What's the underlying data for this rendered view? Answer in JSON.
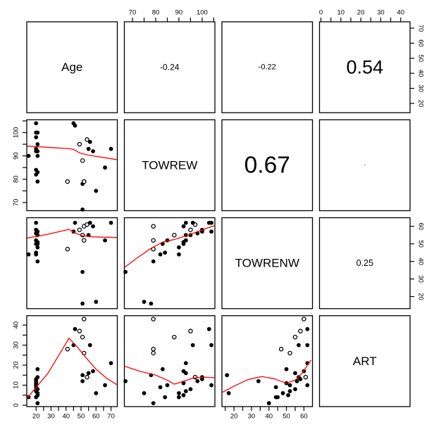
{
  "figure": {
    "kind": "R pairs scatterplot matrix",
    "background": "#ffffff"
  },
  "chart_data": {
    "type": "scatter",
    "subtype": "scatterplot-matrix",
    "variables": [
      {
        "name": "Age",
        "range": [
          13.8,
          74.2
        ],
        "major_ticks": [
          20,
          30,
          40,
          50,
          60,
          70
        ],
        "minor_ticks": [
          25,
          35,
          45,
          55,
          65
        ]
      },
      {
        "name": "TOWREW",
        "range": [
          66.5,
          105.5
        ],
        "major_ticks": [
          70,
          80,
          90,
          100
        ],
        "minor_ticks": [
          75,
          85,
          95,
          105
        ]
      },
      {
        "name": "TOWRENW",
        "range": [
          13.1,
          64.9
        ],
        "major_ticks": [
          20,
          30,
          40,
          50,
          60
        ],
        "minor_ticks": [
          15,
          25,
          35,
          45,
          55
        ]
      },
      {
        "name": "ART",
        "range": [
          -0.7,
          44.7
        ],
        "major_ticks": [
          0,
          10,
          20,
          30,
          40
        ],
        "minor_ticks": [
          5,
          15,
          25,
          35
        ]
      }
    ],
    "correlations": [
      {
        "row": 0,
        "col": 1,
        "r": -0.24,
        "label": "-0.24"
      },
      {
        "row": 0,
        "col": 2,
        "r": -0.22,
        "label": "-0.22"
      },
      {
        "row": 0,
        "col": 3,
        "r": 0.54,
        "label": "0.54"
      },
      {
        "row": 1,
        "col": 2,
        "r": 0.67,
        "label": "0.67"
      },
      {
        "row": 1,
        "col": 3,
        "r": null,
        "label": "-"
      },
      {
        "row": 2,
        "col": 3,
        "r": 0.25,
        "label": "0.25"
      }
    ],
    "observations": [
      {
        "values": [
          15,
          90,
          44,
          4
        ],
        "marker": "f"
      },
      {
        "values": [
          20,
          104,
          62,
          10
        ],
        "marker": "f"
      },
      {
        "values": [
          20,
          100,
          58,
          13
        ],
        "marker": "f"
      },
      {
        "values": [
          21,
          100,
          57,
          14
        ],
        "marker": "f"
      },
      {
        "values": [
          20,
          98,
          56,
          12
        ],
        "marker": "f"
      },
      {
        "values": [
          21,
          95,
          55,
          8
        ],
        "marker": "f"
      },
      {
        "values": [
          20,
          93,
          52,
          7
        ],
        "marker": "f"
      },
      {
        "values": [
          21,
          92,
          51,
          5
        ],
        "marker": "f"
      },
      {
        "values": [
          20,
          92,
          50,
          11
        ],
        "marker": "f"
      },
      {
        "values": [
          21,
          90,
          48,
          6
        ],
        "marker": "f"
      },
      {
        "values": [
          20,
          84,
          45,
          4
        ],
        "marker": "f"
      },
      {
        "values": [
          21,
          83,
          50,
          18
        ],
        "marker": "f"
      },
      {
        "values": [
          20,
          82,
          44,
          9
        ],
        "marker": "f"
      },
      {
        "values": [
          21,
          79,
          40,
          1
        ],
        "marker": "f"
      },
      {
        "values": [
          45,
          104,
          57,
          30
        ],
        "marker": "f"
      },
      {
        "values": [
          46,
          103,
          62,
          38
        ],
        "marker": "f"
      },
      {
        "values": [
          41,
          79,
          47,
          28
        ],
        "marker": "o"
      },
      {
        "values": [
          49,
          95,
          58,
          37
        ],
        "marker": "o"
      },
      {
        "values": [
          51,
          88,
          55,
          34
        ],
        "marker": "o"
      },
      {
        "values": [
          52,
          79,
          52,
          26
        ],
        "marker": "o"
      },
      {
        "values": [
          51,
          78,
          16,
          15
        ],
        "marker": "f"
      },
      {
        "values": [
          52,
          79,
          60,
          43
        ],
        "marker": "o"
      },
      {
        "values": [
          51,
          67,
          34,
          12
        ],
        "marker": "f"
      },
      {
        "values": [
          55,
          93,
          55,
          16
        ],
        "marker": "f"
      },
      {
        "values": [
          54,
          97,
          61,
          14
        ],
        "marker": "o"
      },
      {
        "values": [
          56,
          96,
          62,
          30
        ],
        "marker": "f"
      },
      {
        "values": [
          58,
          92,
          60,
          17
        ],
        "marker": "f"
      },
      {
        "values": [
          60,
          75,
          17,
          6
        ],
        "marker": "f"
      },
      {
        "values": [
          66,
          85,
          52,
          10
        ],
        "marker": "f"
      },
      {
        "values": [
          70,
          93,
          62,
          21
        ],
        "marker": "f"
      }
    ],
    "smooth_lines": {
      "r1c0": [
        [
          14,
          94.2
        ],
        [
          30,
          93.6
        ],
        [
          42,
          93.1
        ],
        [
          45,
          92.8
        ],
        [
          49,
          91.3
        ],
        [
          53,
          90.6
        ],
        [
          58,
          90.0
        ],
        [
          65,
          89.3
        ],
        [
          74,
          88.4
        ]
      ],
      "r2c0": [
        [
          14,
          53.3
        ],
        [
          28,
          55.5
        ],
        [
          42,
          58.3
        ],
        [
          46,
          56.2
        ],
        [
          51,
          54.6
        ],
        [
          58,
          54.0
        ],
        [
          66,
          53.8
        ],
        [
          74,
          53.6
        ]
      ],
      "r3c0": [
        [
          14,
          3.5
        ],
        [
          28,
          16.0
        ],
        [
          42,
          33.5
        ],
        [
          47,
          29.5
        ],
        [
          53,
          24.0
        ],
        [
          60,
          18.0
        ],
        [
          67,
          13.5
        ],
        [
          74,
          10.2
        ]
      ],
      "r2c1": [
        [
          66.5,
          36.5
        ],
        [
          72,
          42.0
        ],
        [
          78,
          47.5
        ],
        [
          83,
          51.0
        ],
        [
          88,
          52.5
        ],
        [
          94,
          55.0
        ],
        [
          100,
          58.0
        ],
        [
          105.5,
          60.5
        ]
      ],
      "r3c1": [
        [
          66.5,
          19.5
        ],
        [
          73,
          17.0
        ],
        [
          80,
          15.0
        ],
        [
          85,
          12.5
        ],
        [
          88,
          10.5
        ],
        [
          92,
          12.0
        ],
        [
          96,
          13.5
        ],
        [
          101,
          14.0
        ],
        [
          105.5,
          13.7
        ]
      ],
      "r3c2": [
        [
          13.5,
          6.5
        ],
        [
          20,
          9.5
        ],
        [
          28,
          12.8
        ],
        [
          36,
          14.3
        ],
        [
          43,
          13.2
        ],
        [
          50,
          11.0
        ],
        [
          55,
          12.5
        ],
        [
          59,
          16.0
        ],
        [
          64,
          22.5
        ]
      ]
    },
    "style": {
      "point_color": "#000000",
      "smooth_color": "#ff0000",
      "frame_color": "#000000",
      "tick_label_size": 9.5,
      "diag_label_size": 17,
      "corr_size_scale": 50,
      "corr_min_size": 7
    }
  }
}
